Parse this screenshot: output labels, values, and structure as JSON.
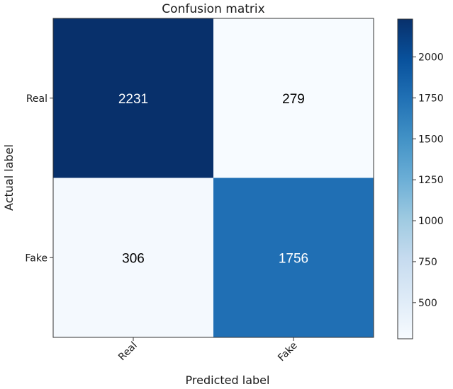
{
  "chart_data": {
    "type": "heatmap",
    "title": "Confusion matrix",
    "xlabel": "Predicted label",
    "ylabel": "Actual label",
    "x_categories": [
      "Real",
      "Fake"
    ],
    "y_categories": [
      "Real",
      "Fake"
    ],
    "values": [
      [
        2231,
        279
      ],
      [
        306,
        1756
      ]
    ],
    "colormap": "Blues",
    "colorbar": {
      "range": [
        279,
        2231
      ],
      "ticks": [
        500,
        750,
        1000,
        1250,
        1500,
        1750,
        2000
      ]
    },
    "colors": {
      "low": "#f1f6fc",
      "high": "#08306b",
      "text_light": "#ffffff",
      "text_dark": "#000000"
    }
  }
}
